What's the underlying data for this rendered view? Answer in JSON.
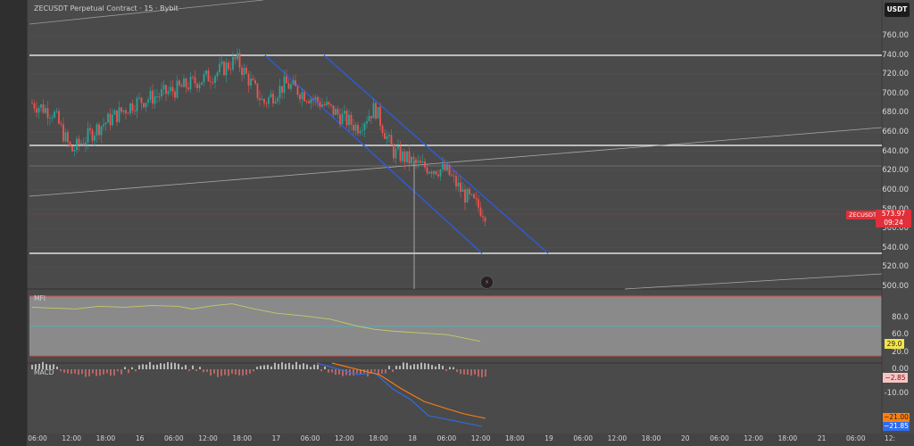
{
  "title": "ZECUSDT Perpetual Contract · 15 · Bybit",
  "currency": "USDT",
  "price_ticks": [
    "760.00",
    "740.00",
    "720.00",
    "700.00",
    "680.00",
    "660.00",
    "640.00",
    "620.00",
    "600.00",
    "580.00",
    "560.00",
    "540.00",
    "520.00",
    "500.00"
  ],
  "price_tag": {
    "symbol": "ZECUSDT.P",
    "price": "573.97",
    "countdown": "09:24"
  },
  "mfi": {
    "label": "MFI",
    "ticks": [
      "80.0",
      "60.0",
      "40.0",
      "20.0"
    ],
    "value": "29.0"
  },
  "macd": {
    "label": "MACD",
    "ticks": [
      "0.00",
      "-10.00",
      "-20.00"
    ],
    "value": "−2.85",
    "signal_a": "−21.00",
    "signal_b": "−21.85"
  },
  "time_labels": [
    "06:00",
    "12:00",
    "18:00",
    "16",
    "06:00",
    "12:00",
    "18:00",
    "17",
    "06:00",
    "12:00",
    "18:00",
    "18",
    "06:00",
    "12:00",
    "18:00",
    "19",
    "06:00",
    "12:00",
    "18:00",
    "20",
    "06:00",
    "12:00",
    "18:00",
    "21",
    "06:00",
    "12:"
  ],
  "colors": {
    "bull": "#26a69a",
    "bear": "#ef5350",
    "channel": "#2f5bd8",
    "mfi_line": "#c8c86a",
    "macd_line": "#2f6df0",
    "signal_line": "#ff7f0e"
  },
  "icons": {
    "snap": "lightning-icon"
  }
}
